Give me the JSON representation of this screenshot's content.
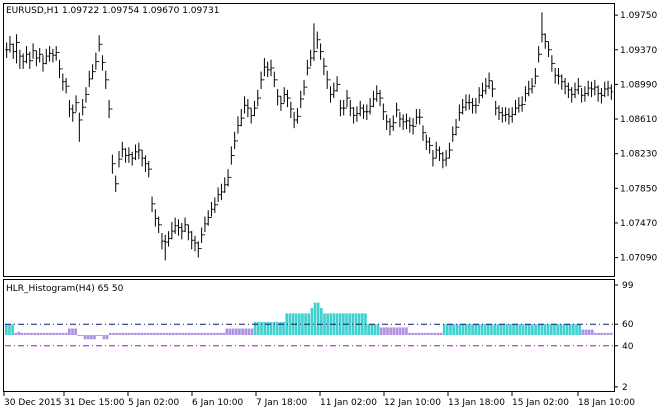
{
  "main_window": {
    "header": "EURUSD,H1  1.09722 1.09754 1.09670 1.09731",
    "price_labels": [
      "1.09750",
      "1.09370",
      "1.08990",
      "1.08610",
      "1.08230",
      "1.07850",
      "1.07470",
      "1.07090"
    ]
  },
  "indicator_window": {
    "header": "HLR_Histogram(H4) 65 50",
    "level_labels": [
      "99",
      "60",
      "40",
      "2"
    ]
  },
  "time_axis": {
    "labels": [
      "30 Dec 2015",
      "31 Dec 15:00",
      "5 Jan 02:00",
      "6 Jan 10:00",
      "7 Jan 18:00",
      "11 Jan 02:00",
      "12 Jan 10:00",
      "13 Jan 18:00",
      "15 Jan 02:00",
      "18 Jan 10:00"
    ]
  },
  "colors": {
    "bars": "#000000",
    "up_level_line": "#191970",
    "down_level_line": "#cc00cc",
    "hist_up": "#40d0d0",
    "hist_up_signal": "#32cd32",
    "hist_neutral": "#b090e0",
    "hist_down": "#e8a050",
    "hist_down_signal": "#d040d0"
  },
  "chart_data": {
    "type": "table",
    "symbol": "EURUSD",
    "timeframe": "H1",
    "price_range": [
      1.0691,
      1.0985
    ],
    "indicator_range": [
      0,
      100
    ],
    "levels": [
      60,
      40
    ],
    "price_close": [
      1.0937,
      1.0943,
      1.0935,
      1.0945,
      1.093,
      1.0924,
      1.0932,
      1.0925,
      1.0936,
      1.0928,
      1.0932,
      1.0922,
      1.093,
      1.0933,
      1.0931,
      1.0934,
      1.0916,
      1.0902,
      1.0897,
      1.0872,
      1.0868,
      1.0879,
      1.086,
      1.0874,
      1.0888,
      1.0905,
      1.0913,
      1.0924,
      1.0943,
      1.0923,
      1.0904,
      1.0872,
      1.0812,
      1.079,
      1.0817,
      1.0828,
      1.0821,
      1.0822,
      1.0818,
      1.0825,
      1.0827,
      1.0818,
      1.0812,
      1.0806,
      1.0768,
      1.0752,
      1.0745,
      1.0727,
      1.0726,
      1.073,
      1.0738,
      1.0744,
      1.0742,
      1.0738,
      1.0745,
      1.0737,
      1.0728,
      1.0725,
      1.0719,
      1.0734,
      1.0746,
      1.0753,
      1.0762,
      1.0767,
      1.0778,
      1.0781,
      1.0789,
      1.0797,
      1.0821,
      1.0837,
      1.0854,
      1.0862,
      1.0876,
      1.0873,
      1.0865,
      1.0873,
      1.0884,
      1.0904,
      1.0918,
      1.0915,
      1.0917,
      1.0904,
      1.0886,
      1.0878,
      1.0888,
      1.0884,
      1.0872,
      1.086,
      1.0864,
      1.0883,
      1.0896,
      1.0917,
      1.0928,
      1.0935,
      1.0948,
      1.0935,
      1.0919,
      1.0904,
      1.0888,
      1.0892,
      1.0899,
      1.0873,
      1.0873,
      1.0884,
      1.0873,
      1.0865,
      1.0867,
      1.0873,
      1.0869,
      1.0869,
      1.0875,
      1.0883,
      1.0889,
      1.0884,
      1.0869,
      1.0858,
      1.0853,
      1.0857,
      1.0871,
      1.0861,
      1.0858,
      1.0859,
      1.0854,
      1.0853,
      1.0863,
      1.0863,
      1.0846,
      1.0836,
      1.0832,
      1.0818,
      1.0827,
      1.0823,
      1.0816,
      1.0818,
      1.0827,
      1.0844,
      1.0852,
      1.0868,
      1.0874,
      1.0879,
      1.0879,
      1.0876,
      1.0876,
      1.0887,
      1.0892,
      1.0897,
      1.0903,
      1.0894,
      1.0873,
      1.0868,
      1.0865,
      1.0866,
      1.0864,
      1.0866,
      1.0873,
      1.0876,
      1.0877,
      1.0889,
      1.0894,
      1.0897,
      1.0908,
      1.0932,
      1.0954,
      1.0946,
      1.0937,
      1.0922,
      1.0909,
      1.0908,
      1.0902,
      1.0897,
      1.0893,
      1.0888,
      1.0893,
      1.0897,
      1.0887,
      1.0889,
      1.0895,
      1.0894,
      1.0896,
      1.0889,
      1.0887,
      1.0894,
      1.0895,
      1.0891
    ],
    "price_hilo": [
      [
        1.0945,
        1.0928
      ],
      [
        1.0952,
        1.0934
      ],
      [
        1.0944,
        1.0927
      ],
      [
        1.0954,
        1.0922
      ],
      [
        1.0937,
        1.0916
      ],
      [
        1.0933,
        1.0916
      ],
      [
        1.0941,
        1.0922
      ],
      [
        1.0935,
        1.0916
      ],
      [
        1.0944,
        1.0927
      ],
      [
        1.0936,
        1.0919
      ],
      [
        1.0939,
        1.0923
      ],
      [
        1.0931,
        1.0913
      ],
      [
        1.0938,
        1.0921
      ],
      [
        1.0941,
        1.0924
      ],
      [
        1.0938,
        1.0923
      ],
      [
        1.0941,
        1.0925
      ],
      [
        1.0926,
        1.0906
      ],
      [
        1.0911,
        1.0892
      ],
      [
        1.0906,
        1.0889
      ],
      [
        1.0882,
        1.0863
      ],
      [
        1.0877,
        1.0858
      ],
      [
        1.0887,
        1.0869
      ],
      [
        1.0868,
        1.0836
      ],
      [
        1.0883,
        1.0865
      ],
      [
        1.0896,
        1.0879
      ],
      [
        1.0914,
        1.0896
      ],
      [
        1.0921,
        1.0905
      ],
      [
        1.0934,
        1.0915
      ],
      [
        1.0953,
        1.0935
      ],
      [
        1.0931,
        1.0914
      ],
      [
        1.0914,
        1.0894
      ],
      [
        1.0882,
        1.0862
      ],
      [
        1.0822,
        1.0801
      ],
      [
        1.0799,
        1.0781
      ],
      [
        1.0826,
        1.0808
      ],
      [
        1.0836,
        1.0819
      ],
      [
        1.0829,
        1.0813
      ],
      [
        1.083,
        1.0813
      ],
      [
        1.0825,
        1.081
      ],
      [
        1.0833,
        1.0816
      ],
      [
        1.0835,
        1.0817
      ],
      [
        1.0827,
        1.0809
      ],
      [
        1.0821,
        1.0803
      ],
      [
        1.0815,
        1.0797
      ],
      [
        1.0776,
        1.0759
      ],
      [
        1.0762,
        1.0743
      ],
      [
        1.0754,
        1.0736
      ],
      [
        1.0736,
        1.0718
      ],
      [
        1.0734,
        1.0706
      ],
      [
        1.0738,
        1.0721
      ],
      [
        1.0748,
        1.0729
      ],
      [
        1.0753,
        1.0735
      ],
      [
        1.0751,
        1.0733
      ],
      [
        1.0747,
        1.0729
      ],
      [
        1.0753,
        1.0737
      ],
      [
        1.0745,
        1.0728
      ],
      [
        1.0738,
        1.0718
      ],
      [
        1.0733,
        1.0716
      ],
      [
        1.0727,
        1.0709
      ],
      [
        1.0742,
        1.0725
      ],
      [
        1.0754,
        1.0737
      ],
      [
        1.0761,
        1.0744
      ],
      [
        1.077,
        1.0754
      ],
      [
        1.0775,
        1.0758
      ],
      [
        1.0786,
        1.077
      ],
      [
        1.079,
        1.0772
      ],
      [
        1.0797,
        1.078
      ],
      [
        1.0806,
        1.0787
      ],
      [
        1.0831,
        1.0811
      ],
      [
        1.0847,
        1.0828
      ],
      [
        1.0864,
        1.0845
      ],
      [
        1.0872,
        1.0853
      ],
      [
        1.0886,
        1.0867
      ],
      [
        1.0883,
        1.0863
      ],
      [
        1.0873,
        1.0856
      ],
      [
        1.0881,
        1.0864
      ],
      [
        1.0893,
        1.0875
      ],
      [
        1.0913,
        1.0894
      ],
      [
        1.0928,
        1.0908
      ],
      [
        1.0924,
        1.0907
      ],
      [
        1.0926,
        1.0908
      ],
      [
        1.0913,
        1.0896
      ],
      [
        1.0894,
        1.0876
      ],
      [
        1.0886,
        1.087
      ],
      [
        1.0896,
        1.0879
      ],
      [
        1.0893,
        1.0874
      ],
      [
        1.088,
        1.0862
      ],
      [
        1.0869,
        1.0851
      ],
      [
        1.0873,
        1.0856
      ],
      [
        1.0892,
        1.0873
      ],
      [
        1.0904,
        1.0887
      ],
      [
        1.0926,
        1.0909
      ],
      [
        1.0937,
        1.0919
      ],
      [
        1.0966,
        1.0925
      ],
      [
        1.0957,
        1.0938
      ],
      [
        1.0944,
        1.0926
      ],
      [
        1.0928,
        1.0909
      ],
      [
        1.0914,
        1.0894
      ],
      [
        1.0897,
        1.0879
      ],
      [
        1.0901,
        1.0884
      ],
      [
        1.0908,
        1.0891
      ],
      [
        1.0882,
        1.0864
      ],
      [
        1.0882,
        1.0865
      ],
      [
        1.0893,
        1.0874
      ],
      [
        1.0882,
        1.0864
      ],
      [
        1.0874,
        1.0856
      ],
      [
        1.0875,
        1.0858
      ],
      [
        1.0881,
        1.0864
      ],
      [
        1.0877,
        1.0861
      ],
      [
        1.0877,
        1.086
      ],
      [
        1.0884,
        1.0866
      ],
      [
        1.0892,
        1.0874
      ],
      [
        1.0898,
        1.088
      ],
      [
        1.0893,
        1.0875
      ],
      [
        1.0878,
        1.086
      ],
      [
        1.0866,
        1.0849
      ],
      [
        1.0862,
        1.0843
      ],
      [
        1.0865,
        1.0848
      ],
      [
        1.0879,
        1.0863
      ],
      [
        1.0869,
        1.0852
      ],
      [
        1.0866,
        1.0849
      ],
      [
        1.0867,
        1.085
      ],
      [
        1.0863,
        1.0846
      ],
      [
        1.0862,
        1.0844
      ],
      [
        1.0872,
        1.0855
      ],
      [
        1.0872,
        1.0855
      ],
      [
        1.0854,
        1.0837
      ],
      [
        1.0844,
        1.0827
      ],
      [
        1.0841,
        1.0823
      ],
      [
        1.0827,
        1.0809
      ],
      [
        1.0836,
        1.0818
      ],
      [
        1.0831,
        1.0815
      ],
      [
        1.0825,
        1.0807
      ],
      [
        1.0827,
        1.0809
      ],
      [
        1.0835,
        1.0818
      ],
      [
        1.0853,
        1.0836
      ],
      [
        1.0861,
        1.0843
      ],
      [
        1.0877,
        1.0859
      ],
      [
        1.0883,
        1.0866
      ],
      [
        1.0888,
        1.087
      ],
      [
        1.0888,
        1.0871
      ],
      [
        1.0884,
        1.0867
      ],
      [
        1.0884,
        1.0867
      ],
      [
        1.0896,
        1.0878
      ],
      [
        1.0901,
        1.0884
      ],
      [
        1.0906,
        1.0888
      ],
      [
        1.0912,
        1.0894
      ],
      [
        1.0903,
        1.0885
      ],
      [
        1.0881,
        1.0865
      ],
      [
        1.0876,
        1.086
      ],
      [
        1.0874,
        1.0857
      ],
      [
        1.0874,
        1.0858
      ],
      [
        1.0873,
        1.0855
      ],
      [
        1.0874,
        1.0857
      ],
      [
        1.0882,
        1.0865
      ],
      [
        1.0885,
        1.0868
      ],
      [
        1.0886,
        1.0869
      ],
      [
        1.0897,
        1.088
      ],
      [
        1.0903,
        1.0886
      ],
      [
        1.0906,
        1.0889
      ],
      [
        1.0917,
        1.0899
      ],
      [
        1.0941,
        1.0923
      ],
      [
        1.0978,
        1.0945
      ],
      [
        1.0955,
        1.0938
      ],
      [
        1.0946,
        1.0929
      ],
      [
        1.0931,
        1.0913
      ],
      [
        1.0917,
        1.09
      ],
      [
        1.0917,
        1.0899
      ],
      [
        1.091,
        1.0893
      ],
      [
        1.0906,
        1.0888
      ],
      [
        1.0901,
        1.0884
      ],
      [
        1.0896,
        1.0879
      ],
      [
        1.0901,
        1.0884
      ],
      [
        1.0906,
        1.0888
      ],
      [
        1.0895,
        1.0879
      ],
      [
        1.0897,
        1.088
      ],
      [
        1.0903,
        1.0886
      ],
      [
        1.0902,
        1.0885
      ],
      [
        1.0904,
        1.0887
      ],
      [
        1.0898,
        1.088
      ],
      [
        1.0895,
        1.0878
      ],
      [
        1.0902,
        1.0885
      ],
      [
        1.0903,
        1.0886
      ],
      [
        1.0899,
        1.0882
      ]
    ],
    "histogram": [
      60,
      60,
      60,
      52,
      53,
      52,
      52,
      52,
      52,
      52,
      52,
      52,
      52,
      52,
      52,
      52,
      52,
      52,
      52,
      52,
      56,
      56,
      56,
      50,
      50,
      46,
      46,
      46,
      46,
      50,
      50,
      46,
      46,
      52,
      52,
      52,
      52,
      52,
      52,
      52,
      52,
      52,
      52,
      52,
      52,
      52,
      52,
      52,
      52,
      52,
      52,
      52,
      52,
      52,
      52,
      52,
      52,
      52,
      52,
      52,
      52,
      52,
      52,
      52,
      52,
      52,
      52,
      52,
      52,
      52,
      56,
      56,
      56,
      56,
      56,
      56,
      56,
      56,
      56,
      62,
      62,
      62,
      62,
      62,
      62,
      62,
      62,
      62,
      62,
      70,
      70,
      70,
      70,
      70,
      70,
      70,
      70,
      75,
      80,
      80,
      75,
      70,
      70,
      70,
      70,
      70,
      70,
      70,
      70,
      70,
      70,
      70,
      70,
      70,
      70,
      60,
      60,
      60,
      60,
      57,
      57,
      57,
      57,
      57,
      57,
      57,
      57,
      57,
      52,
      52,
      52,
      52,
      52,
      52,
      52,
      52,
      52,
      52,
      52,
      60,
      60,
      60,
      60,
      60,
      60,
      60,
      60,
      60,
      60,
      60,
      60,
      60,
      60,
      60,
      60,
      60,
      60,
      60,
      60,
      60,
      60,
      60,
      60,
      60,
      60,
      60,
      60,
      60,
      60,
      60,
      60,
      60,
      60,
      60,
      60,
      60,
      60,
      60,
      60,
      60,
      60,
      60,
      60,
      55,
      55,
      55,
      55,
      52,
      52,
      52,
      52,
      52,
      52
    ],
    "hist_state": []
  }
}
